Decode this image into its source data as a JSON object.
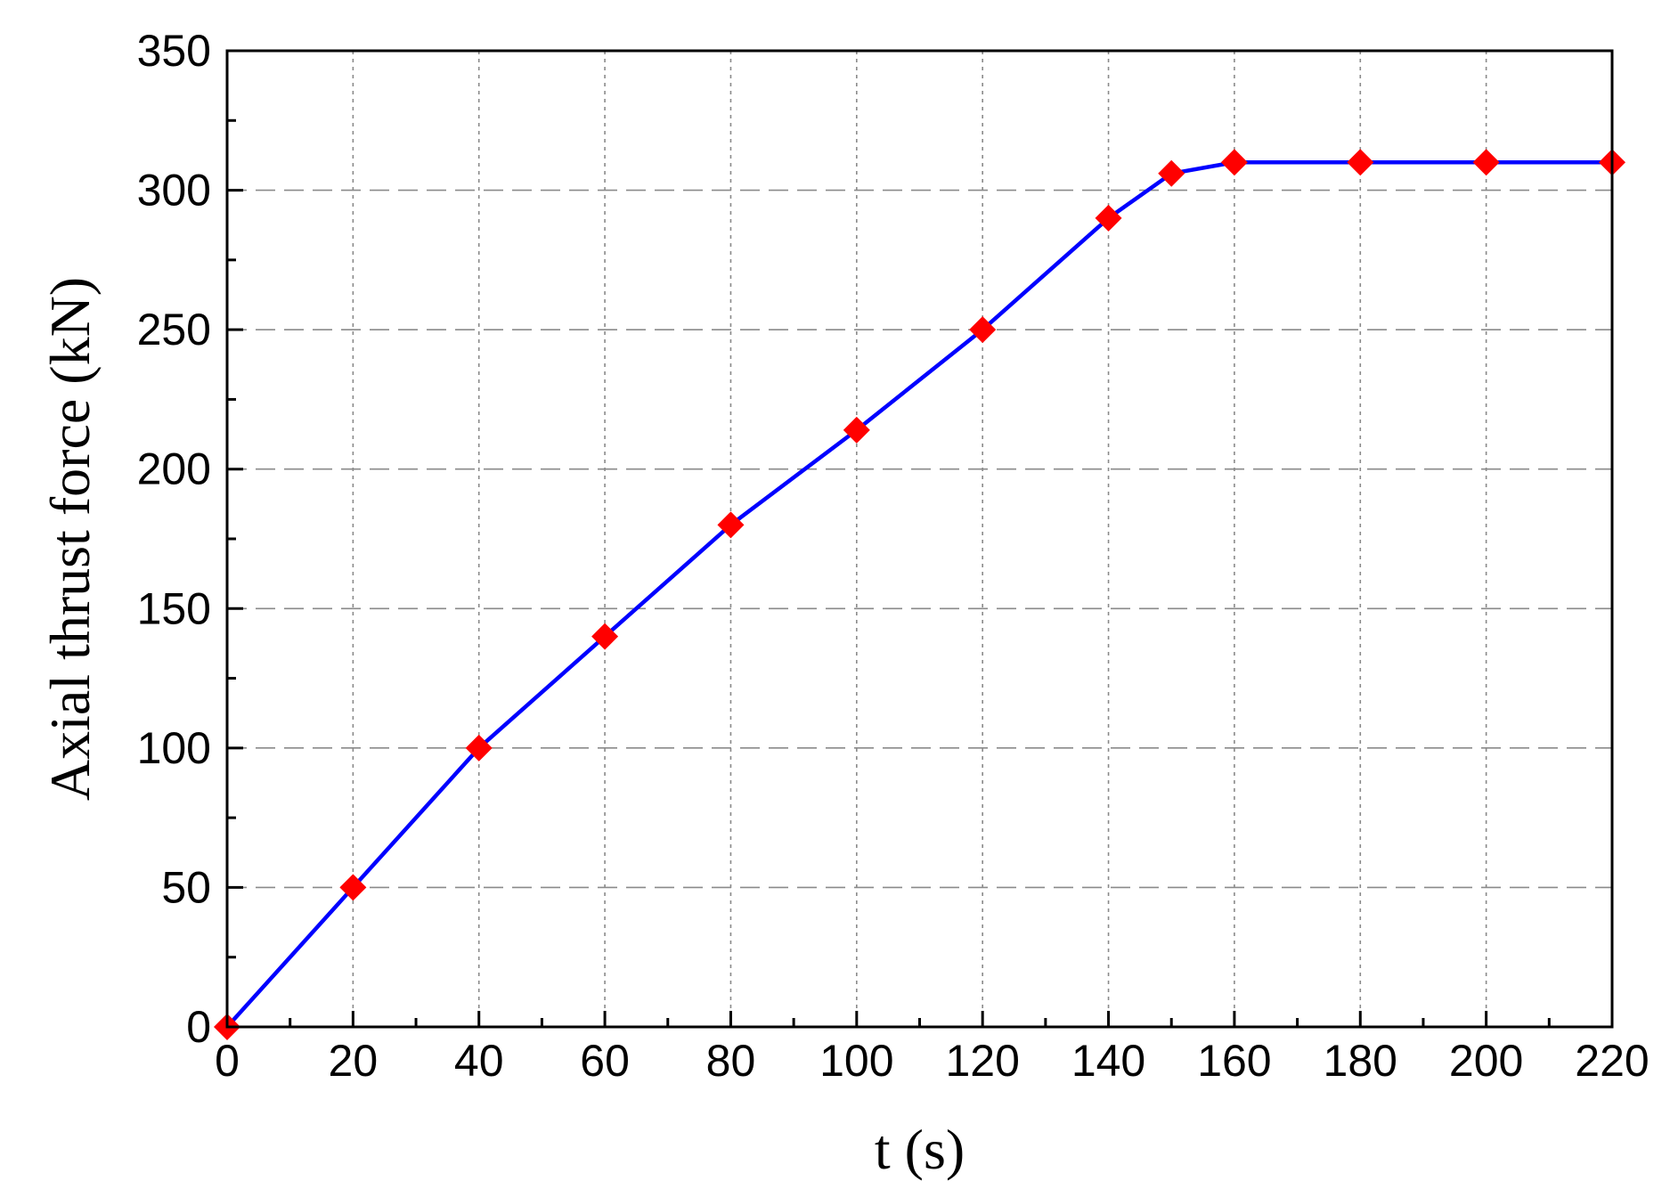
{
  "chart_data": {
    "type": "line",
    "xlabel": "t (s)",
    "ylabel": "Axial thrust force (kN)",
    "xlim": [
      0,
      220
    ],
    "ylim": [
      0,
      350
    ],
    "x_ticks": [
      0,
      20,
      40,
      60,
      80,
      100,
      120,
      140,
      160,
      180,
      200,
      220
    ],
    "y_ticks": [
      0,
      50,
      100,
      150,
      200,
      250,
      300,
      350
    ],
    "grid": true,
    "legend": "none",
    "series": [
      {
        "line_color": "#0000ff",
        "marker_color": "#ff0000",
        "marker": "diamond",
        "x": [
          0,
          20,
          40,
          60,
          80,
          100,
          120,
          140,
          150,
          160,
          180,
          200,
          220
        ],
        "y": [
          0,
          50,
          100,
          140,
          180,
          214,
          250,
          290,
          306,
          310,
          310,
          310,
          310
        ]
      }
    ]
  }
}
